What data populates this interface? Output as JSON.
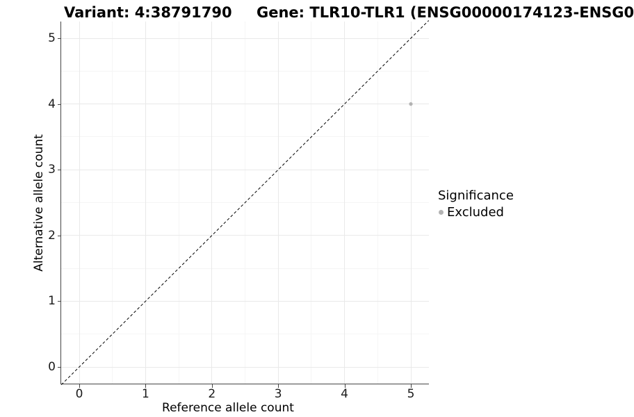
{
  "figure": {
    "background": "#ffffff",
    "titles": {
      "variant": "Variant: 4:38791790",
      "gene": "Gene: TLR10-TLR1 (ENSG00000174123-ENSG0"
    }
  },
  "chart_data": {
    "type": "scatter",
    "xlabel": "Reference allele count",
    "ylabel": "Alternative allele count",
    "x_ticks": [
      0,
      1,
      2,
      3,
      4,
      5
    ],
    "y_ticks": [
      0,
      1,
      2,
      3,
      4,
      5
    ],
    "xlim": [
      -0.27,
      5.27
    ],
    "ylim": [
      -0.27,
      5.27
    ],
    "grid": "major+minor",
    "identity_line": {
      "style": "dashed",
      "color": "#000000",
      "from": [
        -0.27,
        -0.27
      ],
      "to": [
        5.27,
        5.27
      ]
    },
    "series": [
      {
        "name": "Excluded",
        "color": "#b3b3b3",
        "points": [
          {
            "x": 5,
            "y": 4
          }
        ]
      }
    ],
    "legend": {
      "title": "Significance",
      "position": "right",
      "entries": [
        {
          "label": "Excluded",
          "color": "#b3b3b3"
        }
      ]
    }
  },
  "style": {
    "axis_line_color": "#444444",
    "grid_major_color": "#e9e9e9",
    "grid_minor_color": "#f5f5f5",
    "text_color": "#000000"
  }
}
